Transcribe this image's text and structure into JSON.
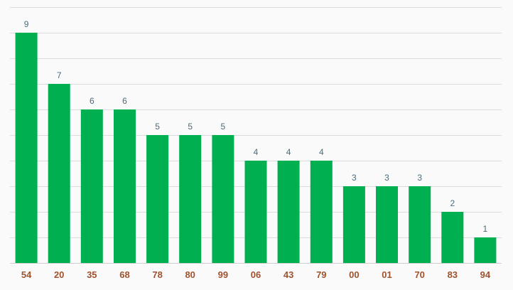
{
  "chart_data": {
    "type": "bar",
    "categories": [
      "54",
      "20",
      "35",
      "68",
      "78",
      "80",
      "99",
      "06",
      "43",
      "79",
      "00",
      "01",
      "70",
      "83",
      "94"
    ],
    "values": [
      9,
      7,
      6,
      6,
      5,
      5,
      5,
      4,
      4,
      4,
      3,
      3,
      3,
      2,
      1
    ],
    "title": "",
    "xlabel": "",
    "ylabel": "",
    "ylim": [
      0,
      10
    ],
    "grid": true,
    "legend": "none",
    "data_labels": true
  },
  "colors": {
    "bar": "#00b050",
    "value_label": "#4a6b7c",
    "tick_label": "#a0522d",
    "grid": "#dcdcdc",
    "background": "#fafafa"
  }
}
